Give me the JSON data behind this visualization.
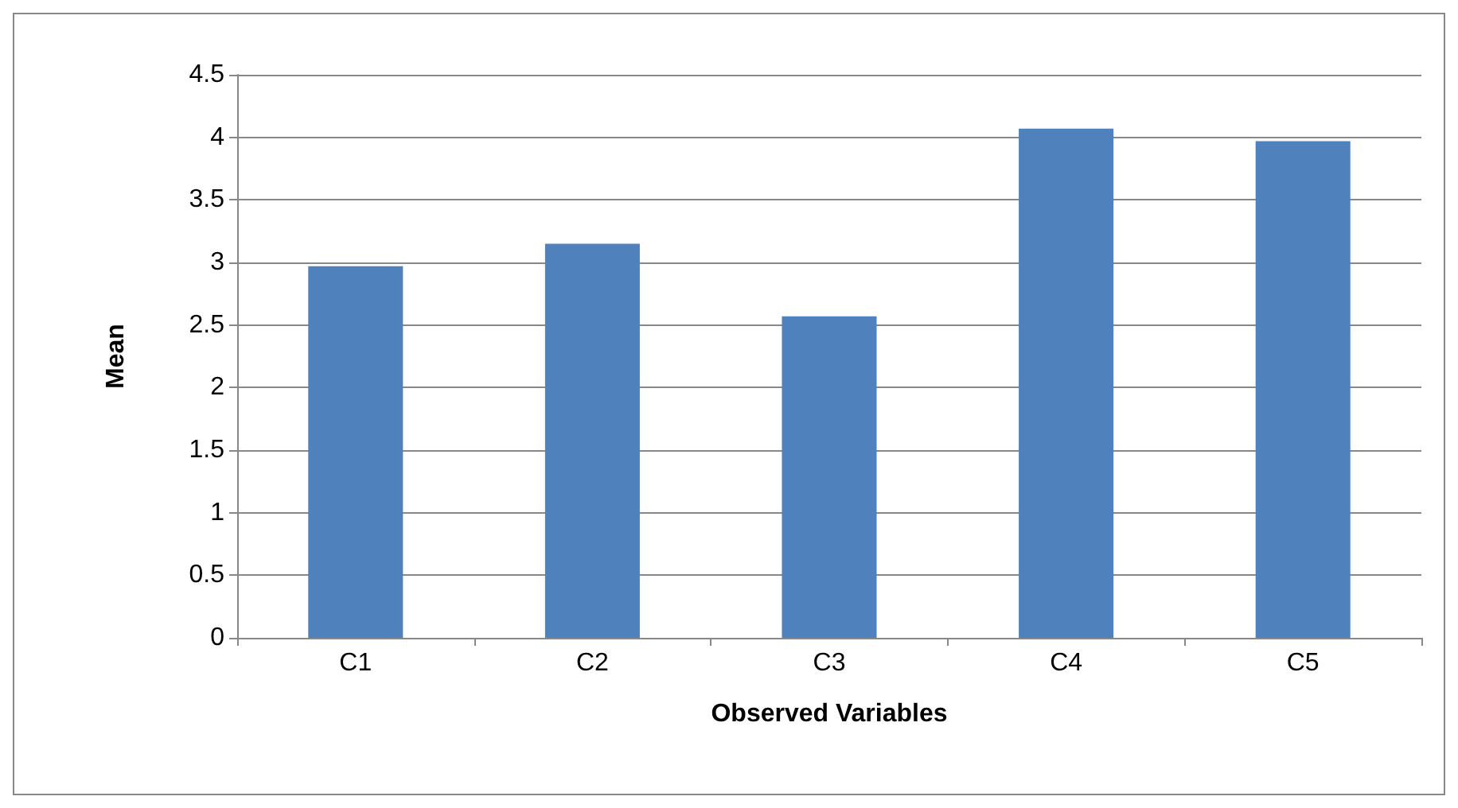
{
  "chart_data": {
    "type": "bar",
    "xlabel": "Observed Variables",
    "ylabel": "Mean",
    "categories": [
      "C1",
      "C2",
      "C3",
      "C4",
      "C5"
    ],
    "values": [
      2.97,
      3.15,
      2.57,
      4.07,
      3.97
    ],
    "color": "#4f81bd",
    "ylim": [
      0,
      4.5
    ],
    "yticks": [
      0,
      0.5,
      1,
      1.5,
      2,
      2.5,
      3,
      3.5,
      4,
      4.5
    ],
    "grid": true
  }
}
